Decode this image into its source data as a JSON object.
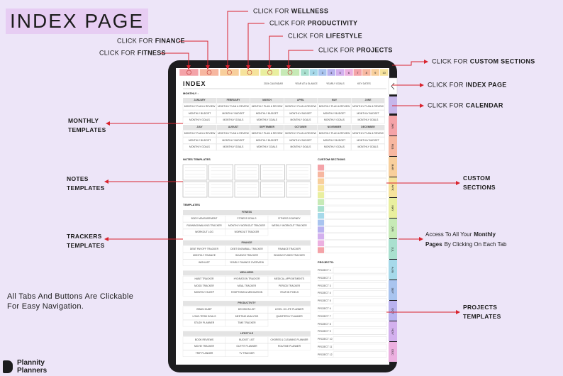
{
  "title": "INDEX PAGE",
  "callouts": [
    {
      "prefix": "CLICK FOR",
      "label": "FITNESS"
    },
    {
      "prefix": "CLICK FOR",
      "label": "FINANCE"
    },
    {
      "prefix": "CLICK FOR",
      "label": "WELLNESS"
    },
    {
      "prefix": "CLICK FOR",
      "label": "PRODUCTIVITY"
    },
    {
      "prefix": "CLICK FOR",
      "label": "LIFESTYLE"
    },
    {
      "prefix": "CLICK FOR",
      "label": "PROJECTS"
    },
    {
      "prefix": "CLICK FOR",
      "label": "CUSTOM SECTIONS"
    },
    {
      "prefix": "CLICK FOR",
      "label": "INDEX PAGE"
    },
    {
      "prefix": "CLICK FOR",
      "label": "CALENDAR"
    }
  ],
  "labels": [
    {
      "lines": [
        "MONTHLY",
        "TEMPLATES"
      ]
    },
    {
      "lines": [
        "NOTES",
        "TEMPLATES"
      ]
    },
    {
      "lines": [
        "TRACKERS",
        "TEMPLATES"
      ]
    },
    {
      "lines": [
        "CUSTOM",
        "SECTIONS"
      ]
    },
    {
      "lines": [
        "PROJECTS",
        "TEMPLATES"
      ]
    }
  ],
  "access": [
    [
      {
        "text": "Access To All Your",
        "bold": false
      },
      {
        "text": "Monthly",
        "bold": true
      }
    ],
    [
      {
        "text": "Pages",
        "bold": true
      },
      {
        "text": "By Clicking On Each Tab",
        "bold": false
      }
    ]
  ],
  "note": [
    "All Tabs And Buttons Are Clickable",
    "For Easy Navigation."
  ],
  "brand": [
    "Plannity",
    "Planners"
  ],
  "tablet": {
    "heading": "INDEX",
    "nav": [
      "2024 CALENDAR",
      "YEAR AT A GLANCE",
      "YEARLY GOALS",
      "KEY DATES"
    ],
    "number_tabs": [
      "1",
      "2",
      "3",
      "4",
      "5",
      "6",
      "7",
      "8",
      "9",
      "10"
    ],
    "month_tabs": [
      "JAN",
      "FEB",
      "MAR",
      "APR",
      "MAY",
      "JUN",
      "JUL",
      "AUG",
      "SEP",
      "OCT",
      "NOV",
      "DEC"
    ],
    "monthly_label": "MONTHLY :",
    "months": [
      "JANUARY",
      "FEBRUARY",
      "MARCH",
      "APRIL",
      "MAY",
      "JUNE",
      "JULY",
      "AUGUST",
      "SEPTEMBER",
      "OCTOBER",
      "NOVEMBER",
      "DECEMBER"
    ],
    "month_items": [
      "MONTHLY PLAN & REVIEW",
      "MONTHLY BUDGET",
      "MONTHLY GOALS"
    ],
    "notes_label": "NOTES TEMPLATES",
    "custom_label": "CUSTOM SECTIONS",
    "templates_label": "TEMPLATES",
    "groups": [
      {
        "name": "FITNESS",
        "items": [
          "BODY MEASUREMENT",
          "FITNESS GOALS",
          "FITNESS JOURNEY",
          "RUNNING/WALKING TRACKER",
          "MONTHLY WORKOUT TRACKER",
          "WEEKLY WORKOUT TRACKER",
          "WORKOUT LOG",
          "WORKOUT TRACKER"
        ]
      },
      {
        "name": "FINANCE",
        "items": [
          "DEBT PAYOFF TRACKER",
          "DEBT SNOWBALL TRACKER",
          "FINANCE TRACKER",
          "MONTHLY FINANCE",
          "SAVINGS TRACKER",
          "SINKING FUNDS TRACKER",
          "WISHLIST",
          "YEARLY FINANCE OVERVIEW"
        ]
      },
      {
        "name": "WELLNESS",
        "items": [
          "HABIT TRACKER",
          "HYDRATION TRACKER",
          "MEDICAL APPOINTMENTS",
          "MOOD TRACKER",
          "MEAL TRACKER",
          "PERIOD TRACKER",
          "MONTHLY SLEEP",
          "SYMPTOMS & MEDICATION",
          "YEAR IN PIXELS"
        ]
      },
      {
        "name": "PRODUCTIVITY",
        "items": [
          "BRAIN DUMP",
          "DECISION LIST",
          "LEVEL 10 LIFE PLANNER",
          "LONG-TERM GOALS",
          "MEETING ANALYSIS",
          "QUARTERLY PLANNER",
          "STUDY PLANNER",
          "TIME TRACKER"
        ]
      },
      {
        "name": "LIFESTYLE",
        "items": [
          "BOOK REVIEWS",
          "BUCKET LIST",
          "CHORES & CLEANING PLANNER",
          "MOVIE TRACKER",
          "OUTFIT PLANNER",
          "ROUTINE PLANNER",
          "TRIP PLANNER",
          "TV TRACKER"
        ]
      }
    ],
    "projects_label": "PROJECTS:",
    "projects": [
      "PROJECT 1",
      "PROJECT 2",
      "PROJECT 3",
      "PROJECT 4",
      "PROJECT 5",
      "PROJECT 6",
      "PROJECT 7",
      "PROJECT 8",
      "PROJECT 9",
      "PROJECT 10",
      "PROJECT 11",
      "PROJECT 12"
    ]
  }
}
